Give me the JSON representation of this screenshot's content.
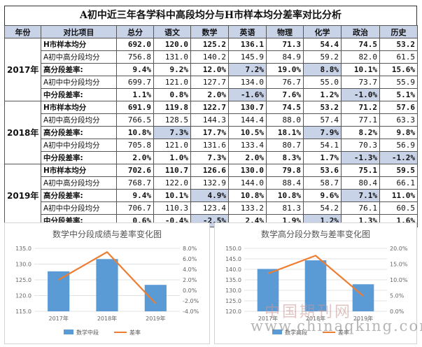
{
  "title": "A初中近三年各学科中高段均分与H市样本均分差率对比分析",
  "columns": [
    "年份",
    "对比项目",
    "总分",
    "语文",
    "数学",
    "英语",
    "物理",
    "化学",
    "政治",
    "历史"
  ],
  "years": [
    {
      "year": "2017年",
      "rows": [
        {
          "label": "H市样本均分",
          "values": [
            "692.0",
            "120.0",
            "125.2",
            "136.1",
            "71.3",
            "54.4",
            "74.5",
            "53.2"
          ],
          "bold": true,
          "hl": []
        },
        {
          "label": "A初中高分段均分",
          "values": [
            "756.8",
            "131.0",
            "140.2",
            "145.9",
            "84.9",
            "59.2",
            "82.0",
            "61.5"
          ],
          "bold": false,
          "hl": []
        },
        {
          "label": "高分段差率:",
          "values": [
            "9.4%",
            "9.2%",
            "12.0%",
            "7.2%",
            "19.0%",
            "8.8%",
            "10.1%",
            "15.6%"
          ],
          "bold": true,
          "hl": [
            3,
            5
          ]
        },
        {
          "label": "A初中中分段均分",
          "values": [
            "699.7",
            "121.0",
            "127.7",
            "134.0",
            "76.7",
            "55.0",
            "73.7",
            "55.9"
          ],
          "bold": false,
          "hl": []
        },
        {
          "label": "中分段差率:",
          "values": [
            "1.1%",
            "0.8%",
            "2.0%",
            "-1.6%",
            "7.6%",
            "1.2%",
            "-1.0%",
            "5.1%"
          ],
          "bold": true,
          "hl": [
            3,
            6
          ]
        }
      ]
    },
    {
      "year": "2018年",
      "rows": [
        {
          "label": "H市样本均分",
          "values": [
            "691.9",
            "119.8",
            "122.7",
            "130.7",
            "74.5",
            "53.2",
            "71.2",
            "57.6"
          ],
          "bold": true,
          "hl": []
        },
        {
          "label": "A初中高分段均分",
          "values": [
            "766.5",
            "128.5",
            "144.3",
            "144.4",
            "88.0",
            "57.4",
            "77.1",
            "63.3"
          ],
          "bold": false,
          "hl": []
        },
        {
          "label": "高分段差率:",
          "values": [
            "10.8%",
            "7.3%",
            "17.7%",
            "10.5%",
            "18.1%",
            "7.9%",
            "8.2%",
            "9.8%"
          ],
          "bold": true,
          "hl": [
            1,
            5
          ]
        },
        {
          "label": "A初中中分段均分",
          "values": [
            "705.8",
            "121.0",
            "131.6",
            "133.4",
            "80.7",
            "54.1",
            "70.3",
            "56.9"
          ],
          "bold": false,
          "hl": []
        },
        {
          "label": "中分段差率:",
          "values": [
            "2.0%",
            "1.0%",
            "7.3%",
            "2.0%",
            "8.3%",
            "1.7%",
            "-1.3%",
            "-1.2%"
          ],
          "bold": true,
          "hl": [
            6,
            7
          ]
        }
      ]
    },
    {
      "year": "2019年",
      "rows": [
        {
          "label": "H市样本均分",
          "values": [
            "702.6",
            "110.7",
            "126.6",
            "130.0",
            "79.8",
            "53.6",
            "75.1",
            "59.5"
          ],
          "bold": true,
          "hl": []
        },
        {
          "label": "A初中高分段均分",
          "values": [
            "768.7",
            "122.0",
            "132.9",
            "144.0",
            "88.4",
            "58.7",
            "80.4",
            "66.1"
          ],
          "bold": false,
          "hl": []
        },
        {
          "label": "高分段差率:",
          "values": [
            "9.4%",
            "10.1%",
            "4.9%",
            "10.8%",
            "10.8%",
            "9.6%",
            "7.1%",
            "11.0%"
          ],
          "bold": true,
          "hl": [
            2,
            6
          ]
        },
        {
          "label": "A初中中分段均分",
          "values": [
            "706.7",
            "110.3",
            "123.4",
            "133.2",
            "81.3",
            "54.2",
            "76.1",
            "60.5"
          ],
          "bold": false,
          "hl": []
        },
        {
          "label": "中分段差率:",
          "values": [
            "0.6%",
            "-0.4%",
            "-2.5%",
            "2.4%",
            "1.9%",
            "1.2%",
            "1.3%",
            "1.6%"
          ],
          "bold": true,
          "hl": [
            2,
            5
          ]
        }
      ]
    }
  ],
  "chart_data": [
    {
      "type": "bar",
      "title": "数学中分段成绩与差率变化图",
      "categories": [
        "2017年",
        "2018年",
        "2019年"
      ],
      "series": [
        {
          "name": "数学中段",
          "type": "bar",
          "axis": "left",
          "values": [
            127.7,
            131.6,
            123.4
          ],
          "color": "#5b9bd5"
        },
        {
          "name": "差率",
          "type": "line",
          "axis": "right",
          "values": [
            2.0,
            7.3,
            -2.5
          ],
          "color": "#ed7d31"
        }
      ],
      "ylim": [
        115,
        135
      ],
      "yticks": [
        "115.0",
        "120.0",
        "125.0",
        "130.0",
        "135.0"
      ],
      "yticks_values": [
        115,
        120,
        125,
        130,
        135
      ],
      "y2lim": [
        -4,
        8
      ],
      "y2ticks": [
        "-4.0%",
        "-2.0%",
        "0.0%",
        "2.0%",
        "4.0%",
        "6.0%",
        "8.0%"
      ],
      "y2ticks_values": [
        -4,
        -2,
        0,
        2,
        4,
        6,
        8
      ],
      "legend": "bottom"
    },
    {
      "type": "bar",
      "title": "数学高分段分数与差率变化图",
      "categories": [
        "2017年",
        "2018年",
        "2019年"
      ],
      "series": [
        {
          "name": "数学高段",
          "type": "bar",
          "axis": "left",
          "values": [
            140.2,
            144.3,
            132.9
          ],
          "color": "#5b9bd5"
        },
        {
          "name": "差率",
          "type": "line",
          "axis": "right",
          "values": [
            12.0,
            17.7,
            4.9
          ],
          "color": "#ed7d31"
        }
      ],
      "ylim": [
        120,
        150
      ],
      "yticks": [
        "120.0",
        "125.0",
        "130.0",
        "135.0",
        "140.0",
        "145.0",
        "150.0"
      ],
      "yticks_values": [
        120,
        125,
        130,
        135,
        140,
        145,
        150
      ],
      "y2lim": [
        0,
        20
      ],
      "y2ticks": [
        "0.0%",
        "5.0%",
        "10.0%",
        "15.0%",
        "20.0%"
      ],
      "y2ticks_values": [
        0,
        5,
        10,
        15,
        20
      ],
      "legend": "bottom"
    }
  ],
  "watermark": {
    "text1": "中国期刊网",
    "text2": "www.chinaqking.com"
  }
}
